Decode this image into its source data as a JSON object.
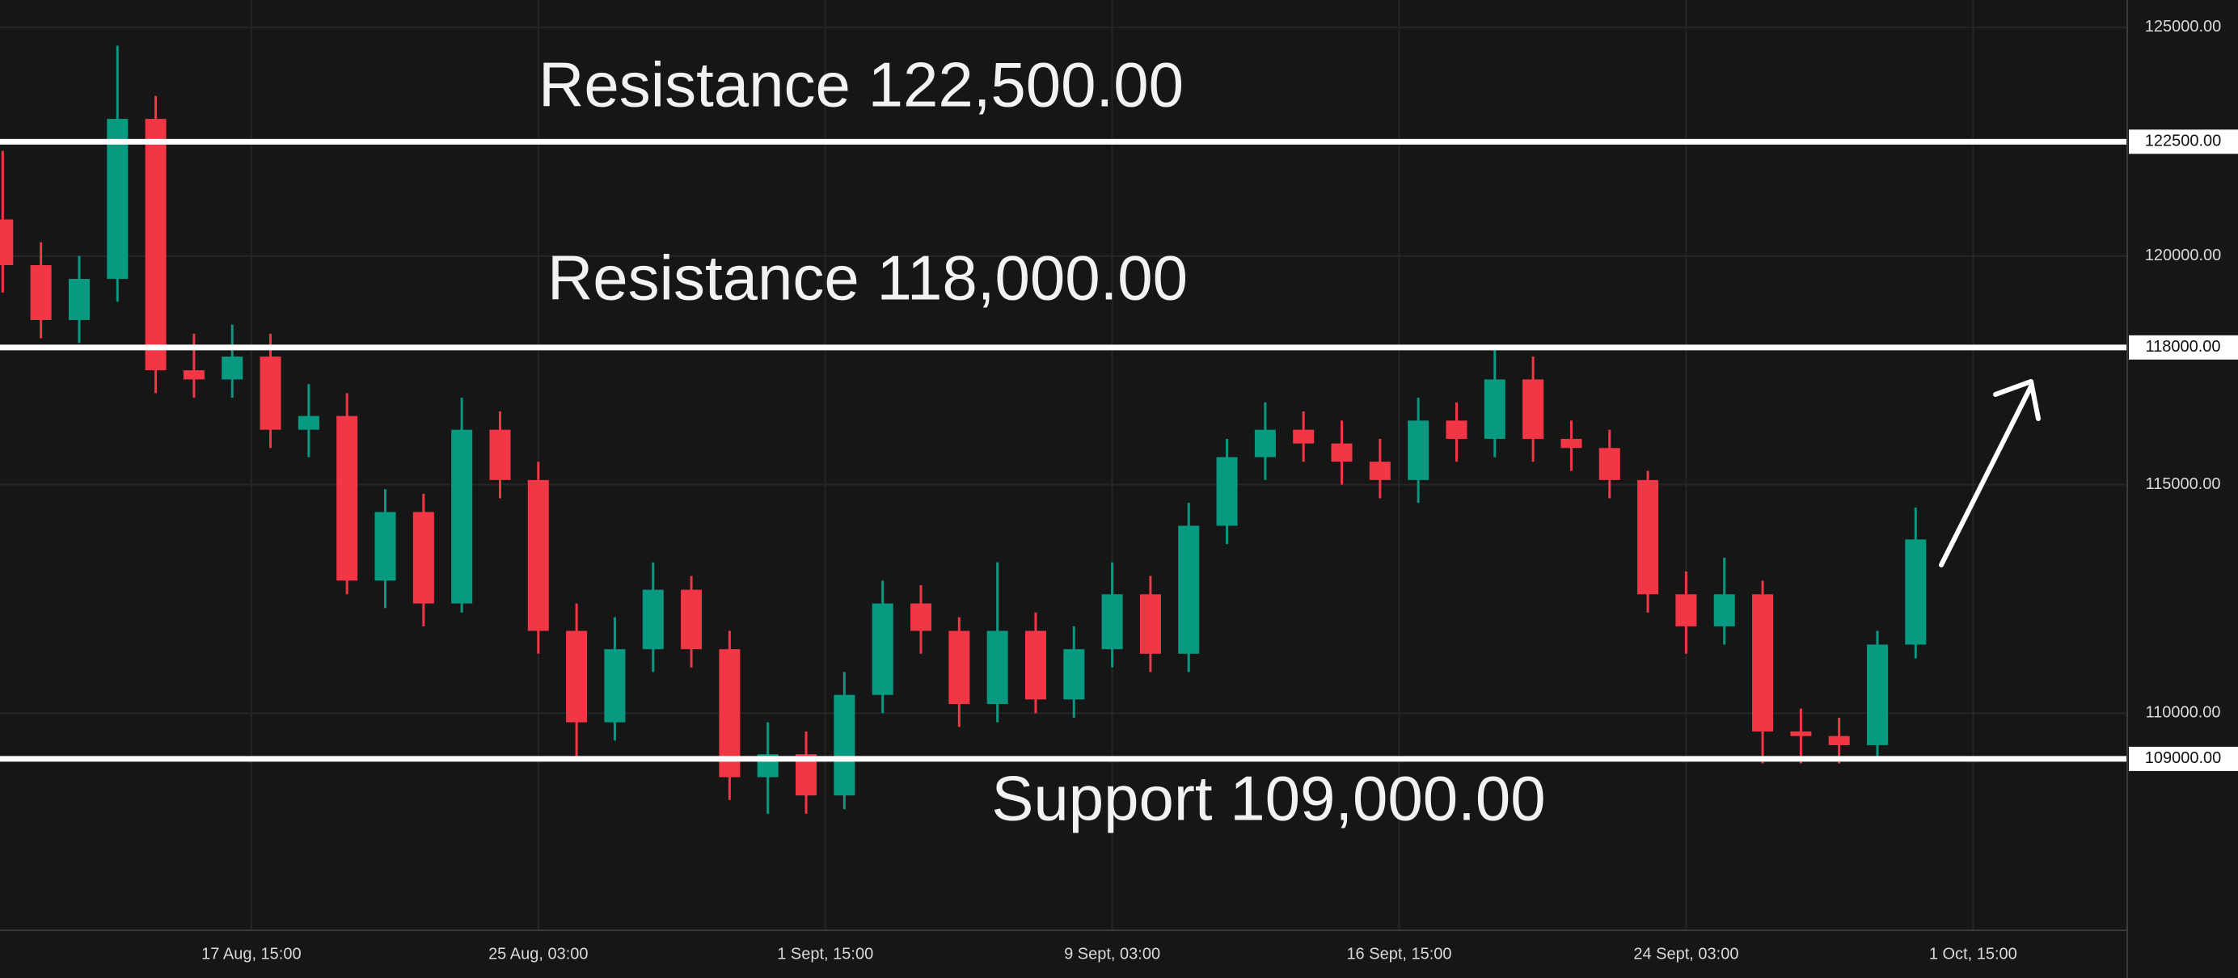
{
  "chart_data": {
    "type": "candlestick",
    "x": [
      -6.5,
      -5.5,
      -4.5,
      -3.5,
      -2.5,
      -1.5,
      -0.5,
      0.5,
      1.5,
      2.5,
      3.5,
      4.5,
      5.5,
      6.5,
      7.5,
      8.5,
      9.5,
      10.5,
      11.5,
      12.5,
      13.5,
      14.5,
      15.5,
      16.5,
      17.5,
      18.5,
      19.5,
      20.5,
      21.5,
      22.5,
      23.5,
      24.5,
      25.5,
      26.5,
      27.5,
      28.5,
      29.5,
      30.5,
      31.5,
      32.5,
      33.5,
      34.5,
      35.5,
      36.5,
      37.5,
      38.5,
      39.5,
      40.5,
      41.5,
      42.5,
      43.5
    ],
    "opens": [
      120800,
      119800,
      118600,
      119500,
      123000,
      117500,
      117300,
      117800,
      116200,
      116500,
      112900,
      114400,
      112400,
      116200,
      115100,
      111800,
      109800,
      111400,
      112700,
      111400,
      108600,
      109100,
      108200,
      110400,
      112400,
      111800,
      110200,
      111800,
      110300,
      111400,
      112600,
      111300,
      114100,
      115600,
      116200,
      115900,
      115500,
      115100,
      116400,
      116000,
      117300,
      116000,
      115800,
      115100,
      112600,
      111900,
      112600,
      109600,
      109500,
      109300,
      111500
    ],
    "highs": [
      122300,
      120300,
      120000,
      124600,
      123500,
      118300,
      118500,
      118300,
      117200,
      117000,
      114900,
      114800,
      116900,
      116600,
      115500,
      112400,
      112100,
      113300,
      113000,
      111800,
      109800,
      109600,
      110900,
      112900,
      112800,
      112100,
      113300,
      112200,
      111900,
      113300,
      113000,
      114600,
      116000,
      116800,
      116600,
      116400,
      116000,
      116900,
      116800,
      118000,
      117800,
      116400,
      116200,
      115300,
      113100,
      113400,
      112900,
      110100,
      109900,
      111800,
      114500
    ],
    "lows": [
      119200,
      118200,
      118100,
      119000,
      117000,
      116900,
      116900,
      115800,
      115600,
      112600,
      112300,
      111900,
      112200,
      114700,
      111300,
      109000,
      109400,
      110900,
      111000,
      108100,
      107800,
      107800,
      107900,
      110000,
      111300,
      109700,
      109800,
      110000,
      109900,
      111000,
      110900,
      110900,
      113700,
      115100,
      115500,
      115000,
      114700,
      114600,
      115500,
      115600,
      115500,
      115300,
      114700,
      112200,
      111300,
      111500,
      108900,
      108900,
      108900,
      109000,
      111200
    ],
    "closes": [
      119800,
      118600,
      119500,
      123000,
      117500,
      117300,
      117800,
      116200,
      116500,
      112900,
      114400,
      112400,
      116200,
      115100,
      111800,
      109800,
      111400,
      112700,
      111400,
      108600,
      109100,
      108200,
      110400,
      112400,
      111800,
      110200,
      111800,
      110300,
      111400,
      112600,
      111300,
      114100,
      115600,
      116200,
      115900,
      115500,
      115100,
      116400,
      116000,
      117300,
      116000,
      115800,
      115100,
      112600,
      111900,
      112600,
      109600,
      109500,
      109300,
      111500,
      113800
    ],
    "up_color": "#089981",
    "down_color": "#f23645",
    "xlim": [
      -6.57,
      49.03
    ],
    "xticks": [
      {
        "value": 0,
        "label": "17 Aug, 15:00"
      },
      {
        "value": 7.5,
        "label": "25 Aug, 03:00"
      },
      {
        "value": 15,
        "label": "1 Sept, 15:00"
      },
      {
        "value": 22.5,
        "label": "9 Sept, 03:00"
      },
      {
        "value": 30,
        "label": "16 Sept, 15:00"
      },
      {
        "value": 37.5,
        "label": "24 Sept, 03:00"
      },
      {
        "value": 45,
        "label": "1 Oct, 15:00"
      }
    ],
    "ylim": [
      105250,
      125600
    ],
    "yticks": [
      {
        "value": 125000,
        "label": "125000.00"
      },
      {
        "value": 120000,
        "label": "120000.00"
      },
      {
        "value": 115000,
        "label": "115000.00"
      },
      {
        "value": 110000,
        "label": "110000.00"
      }
    ],
    "grid": true,
    "levels": [
      {
        "value": 122500,
        "label": "122500.00",
        "text": "Resistance 122,500.00"
      },
      {
        "value": 118000,
        "label": "118000.00",
        "text": "Resistance 118,000.00"
      },
      {
        "value": 109000,
        "label": "109000.00",
        "text": "Support 109,000.00"
      }
    ],
    "level_color": "#ffffff"
  }
}
